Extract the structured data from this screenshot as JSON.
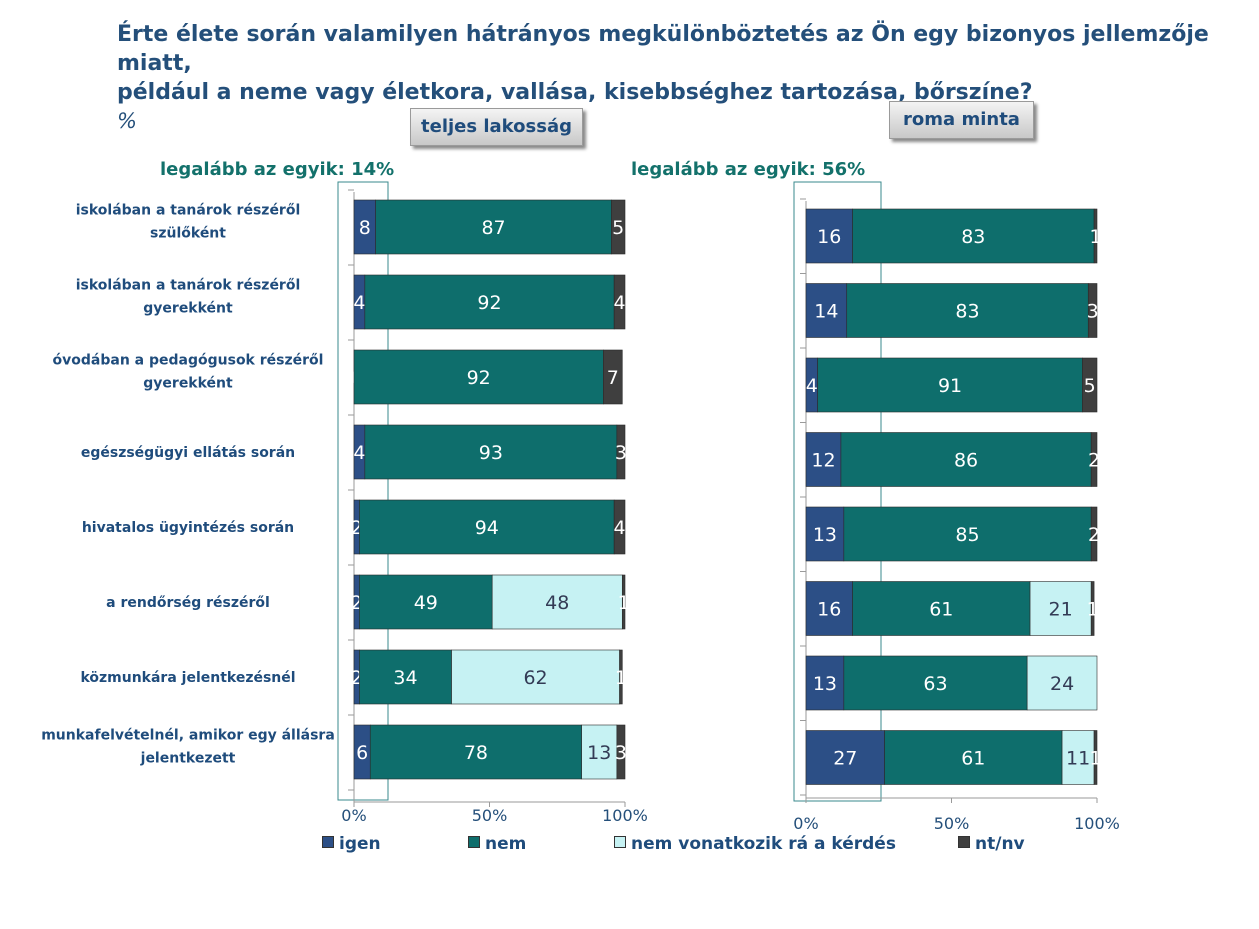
{
  "title": {
    "line1": "Érte élete során valamilyen hátrányos megkülönböztetés az Ön egy bizonyos jellemzője miatt,",
    "line2": "például a neme vagy életkora, vallása, kisebbséghez tartozása, bőrszíne?",
    "unit": "%"
  },
  "panels": {
    "left_label": "teljes lakosság",
    "right_label": "roma minta",
    "left_atleast": "legalább az egyik: 14%",
    "right_atleast": "legalább az egyik: 56%"
  },
  "colors": {
    "igen": "#2c4f86",
    "nem": "#0e6e6c",
    "nem_vonatkozik": "#c6f2f3",
    "nt_nv": "#3f3f3f",
    "title": "#244f7a",
    "accent_text": "#13716b"
  },
  "chart_data": [
    {
      "type": "bar",
      "orientation": "horizontal",
      "stacked": true,
      "title": "teljes lakosság",
      "xlim": [
        0,
        100
      ],
      "xticks": [
        "0%",
        "50%",
        "100%"
      ],
      "categories": [
        [
          "iskolában a tanárok részéről",
          "szülőként"
        ],
        [
          "iskolában a tanárok részéről",
          "gyerekként"
        ],
        [
          "óvodában a pedagógusok részéről",
          "gyerekként"
        ],
        [
          "egészségügyi ellátás során"
        ],
        [
          "hivatalos ügyintézés során"
        ],
        [
          "a rendőrség részéről"
        ],
        [
          "közmunkára jelentkezésnél"
        ],
        [
          "munkafelvételnél, amikor egy állásra",
          "jelentkezett"
        ]
      ],
      "series": [
        {
          "name": "igen",
          "values": [
            8,
            4,
            0,
            4,
            2,
            2,
            2,
            6
          ]
        },
        {
          "name": "nem",
          "values": [
            87,
            92,
            92,
            93,
            94,
            49,
            34,
            78
          ]
        },
        {
          "name": "nem vonatkozik rá a kérdés",
          "values": [
            0,
            0,
            0,
            0,
            0,
            48,
            62,
            13
          ]
        },
        {
          "name": "nt/nv",
          "values": [
            5,
            4,
            7,
            3,
            4,
            1,
            1,
            3
          ]
        }
      ]
    },
    {
      "type": "bar",
      "orientation": "horizontal",
      "stacked": true,
      "title": "roma minta",
      "xlim": [
        0,
        100
      ],
      "xticks": [
        "0%",
        "50%",
        "100%"
      ],
      "series": [
        {
          "name": "igen",
          "values": [
            16,
            14,
            4,
            12,
            13,
            16,
            13,
            27
          ]
        },
        {
          "name": "nem",
          "values": [
            83,
            83,
            91,
            86,
            85,
            61,
            63,
            61
          ]
        },
        {
          "name": "nem vonatkozik rá a kérdés",
          "values": [
            0,
            0,
            0,
            0,
            0,
            21,
            24,
            11
          ]
        },
        {
          "name": "nt/nv",
          "values": [
            1,
            3,
            5,
            2,
            2,
            1,
            0,
            1
          ]
        }
      ]
    }
  ],
  "legend": [
    {
      "name": "igen",
      "label": "igen"
    },
    {
      "name": "nem",
      "label": "nem"
    },
    {
      "name": "nem-vonatkozik",
      "label": "nem vonatkozik rá a kérdés"
    },
    {
      "name": "nt-nv",
      "label": "nt/nv"
    }
  ]
}
